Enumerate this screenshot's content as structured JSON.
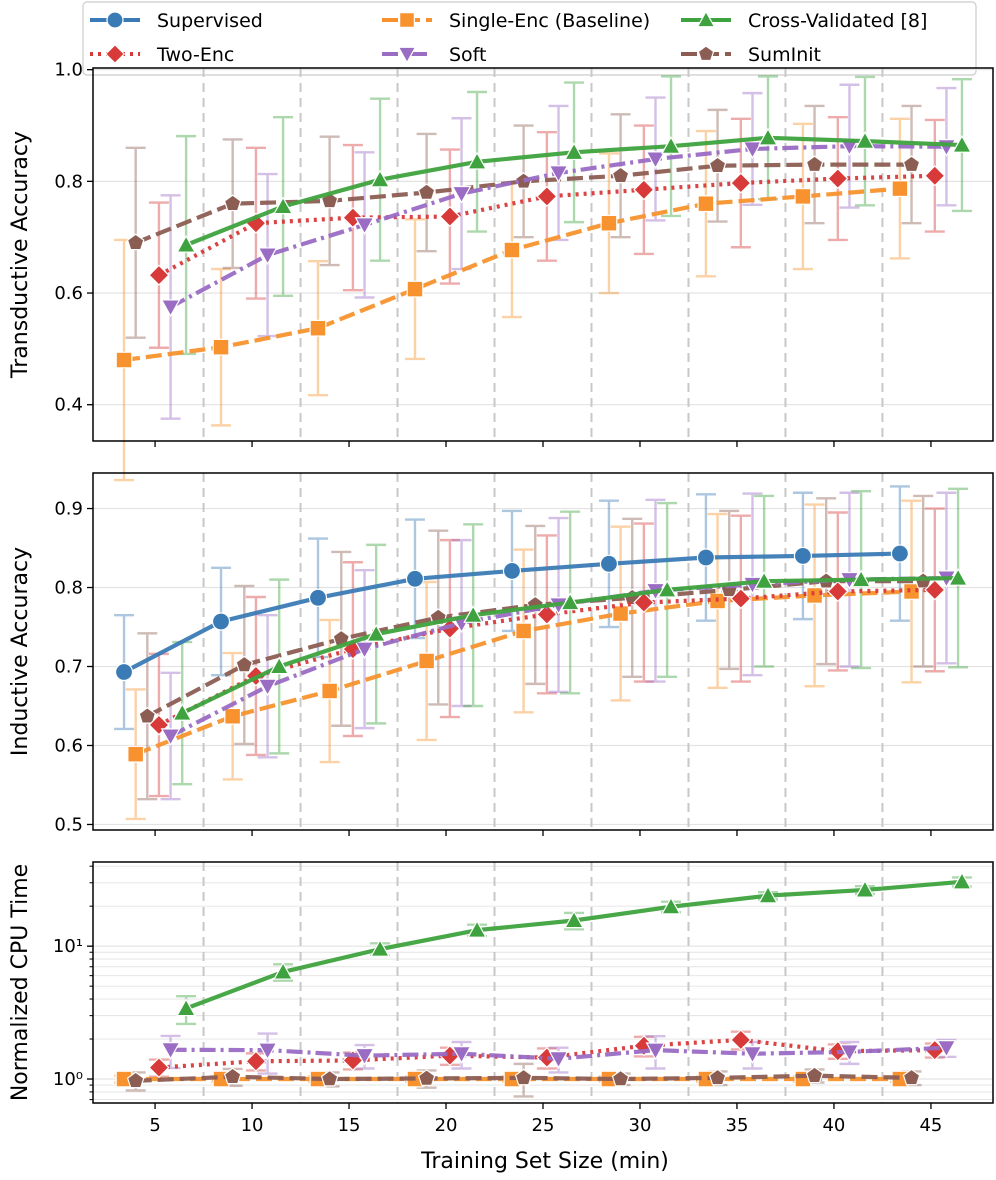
{
  "chart_data": {
    "type": "line",
    "xlabel": "Training Set Size (min)",
    "xticks": [
      5,
      10,
      15,
      20,
      25,
      30,
      35,
      40,
      45
    ],
    "xlim": [
      1.8,
      48.2
    ],
    "vlines": [
      7.5,
      12.5,
      17.5,
      22.5,
      27.5,
      32.5,
      37.5,
      42.5
    ],
    "legend": {
      "placement": "top",
      "entries": [
        {
          "key": "supervised",
          "label": "Supervised"
        },
        {
          "key": "single",
          "label": "Single-Enc (Baseline)"
        },
        {
          "key": "cv",
          "label": "Cross-Validated [8]"
        },
        {
          "key": "twoenc",
          "label": "Two-Enc"
        },
        {
          "key": "soft",
          "label": "Soft"
        },
        {
          "key": "suminit",
          "label": "SumInit"
        }
      ]
    },
    "series_styles": {
      "supervised": {
        "color": "#3b7bb5",
        "marker": "circle",
        "dash": ""
      },
      "single": {
        "color": "#f7922e",
        "marker": "square",
        "dash": "16,6"
      },
      "cv": {
        "color": "#3ea33e",
        "marker": "triangle-up",
        "dash": ""
      },
      "twoenc": {
        "color": "#d83a3a",
        "marker": "diamond",
        "dash": "3,5"
      },
      "soft": {
        "color": "#9a6cc4",
        "marker": "triangle-down",
        "dash": "16,5,3,5"
      },
      "suminit": {
        "color": "#8c5e53",
        "marker": "pentagon",
        "dash": "16,6"
      }
    },
    "panels": [
      {
        "key": "transductive",
        "ylabel": "Transductive Accuracy",
        "yscale": "linear",
        "ylim": [
          0.335,
          1.003
        ],
        "yticks": [
          0.4,
          0.6,
          0.8,
          1.0
        ],
        "ytick_labels": [
          "0.4",
          "0.6",
          "0.8",
          "1.0"
        ],
        "series": [
          {
            "key": "single",
            "x": [
              3.4,
              8.4,
              13.4,
              18.4,
              23.4,
              28.4,
              33.4,
              38.4,
              43.4
            ],
            "y": [
              0.48,
              0.503,
              0.537,
              0.607,
              0.677,
              0.725,
              0.76,
              0.773,
              0.787
            ],
            "err": [
              0.215,
              0.14,
              0.12,
              0.125,
              0.12,
              0.125,
              0.13,
              0.13,
              0.125
            ]
          },
          {
            "key": "twoenc",
            "x": [
              5.2,
              10.2,
              15.2,
              20.2,
              25.2,
              30.2,
              35.2,
              40.2,
              45.2
            ],
            "y": [
              0.632,
              0.725,
              0.735,
              0.737,
              0.773,
              0.785,
              0.797,
              0.805,
              0.81
            ],
            "err": [
              0.13,
              0.135,
              0.13,
              0.12,
              0.115,
              0.115,
              0.115,
              0.11,
              0.1
            ]
          },
          {
            "key": "suminit",
            "x": [
              4.0,
              9.0,
              14.0,
              19.0,
              24.0,
              29.0,
              34.0,
              39.0,
              44.0
            ],
            "y": [
              0.69,
              0.76,
              0.765,
              0.78,
              0.8,
              0.81,
              0.828,
              0.83,
              0.83
            ],
            "err": [
              0.17,
              0.115,
              0.115,
              0.105,
              0.1,
              0.11,
              0.1,
              0.105,
              0.105
            ]
          },
          {
            "key": "soft",
            "x": [
              5.8,
              10.8,
              15.8,
              20.8,
              25.8,
              30.8,
              35.8,
              40.8,
              45.8
            ],
            "y": [
              0.575,
              0.668,
              0.722,
              0.778,
              0.815,
              0.84,
              0.858,
              0.863,
              0.862
            ],
            "err": [
              0.2,
              0.145,
              0.13,
              0.135,
              0.12,
              0.11,
              0.1,
              0.11,
              0.105
            ]
          },
          {
            "key": "cv",
            "x": [
              6.6,
              11.6,
              16.6,
              21.6,
              26.6,
              31.6,
              36.6,
              41.6,
              46.6
            ],
            "y": [
              0.686,
              0.755,
              0.803,
              0.835,
              0.852,
              0.863,
              0.878,
              0.872,
              0.865
            ],
            "err": [
              0.195,
              0.16,
              0.145,
              0.125,
              0.125,
              0.125,
              0.11,
              0.115,
              0.118
            ]
          }
        ]
      },
      {
        "key": "inductive",
        "ylabel": "Inductive Accuracy",
        "yscale": "linear",
        "ylim": [
          0.493,
          0.945
        ],
        "yticks": [
          0.5,
          0.6,
          0.7,
          0.8,
          0.9
        ],
        "ytick_labels": [
          "0.5",
          "0.6",
          "0.7",
          "0.8",
          "0.9"
        ],
        "series": [
          {
            "key": "supervised",
            "x": [
              3.4,
              8.4,
              13.4,
              18.4,
              23.4,
              28.4,
              33.4,
              38.4,
              43.4
            ],
            "y": [
              0.693,
              0.757,
              0.787,
              0.811,
              0.821,
              0.83,
              0.838,
              0.84,
              0.843
            ],
            "err": [
              0.072,
              0.068,
              0.075,
              0.075,
              0.076,
              0.08,
              0.08,
              0.08,
              0.085
            ]
          },
          {
            "key": "single",
            "x": [
              4.0,
              9.0,
              14.0,
              19.0,
              24.0,
              29.0,
              34.0,
              39.0,
              44.0
            ],
            "y": [
              0.589,
              0.637,
              0.669,
              0.707,
              0.745,
              0.767,
              0.783,
              0.79,
              0.795
            ],
            "err": [
              0.082,
              0.08,
              0.09,
              0.1,
              0.103,
              0.11,
              0.11,
              0.115,
              0.115
            ]
          },
          {
            "key": "suminit",
            "x": [
              4.6,
              9.6,
              14.6,
              19.6,
              24.6,
              29.6,
              34.6,
              39.6,
              44.6
            ],
            "y": [
              0.637,
              0.702,
              0.735,
              0.762,
              0.778,
              0.787,
              0.797,
              0.808,
              0.808
            ],
            "err": [
              0.105,
              0.1,
              0.11,
              0.11,
              0.1,
              0.1,
              0.1,
              0.105,
              0.108
            ]
          },
          {
            "key": "twoenc",
            "x": [
              5.2,
              10.2,
              15.2,
              20.2,
              25.2,
              30.2,
              35.2,
              40.2,
              45.2
            ],
            "y": [
              0.626,
              0.688,
              0.722,
              0.748,
              0.766,
              0.781,
              0.786,
              0.795,
              0.797
            ],
            "err": [
              0.09,
              0.1,
              0.11,
              0.112,
              0.1,
              0.1,
              0.105,
              0.1,
              0.103
            ]
          },
          {
            "key": "soft",
            "x": [
              5.8,
              10.8,
              15.8,
              20.8,
              25.8,
              30.8,
              35.8,
              40.8,
              45.8
            ],
            "y": [
              0.612,
              0.675,
              0.722,
              0.755,
              0.778,
              0.796,
              0.804,
              0.81,
              0.812
            ],
            "err": [
              0.08,
              0.09,
              0.1,
              0.105,
              0.11,
              0.115,
              0.115,
              0.11,
              0.108
            ]
          },
          {
            "key": "cv",
            "x": [
              6.4,
              11.4,
              16.4,
              21.4,
              26.4,
              31.4,
              36.4,
              41.4,
              46.4
            ],
            "y": [
              0.641,
              0.7,
              0.741,
              0.765,
              0.781,
              0.797,
              0.808,
              0.81,
              0.812
            ],
            "err": [
              0.09,
              0.11,
              0.113,
              0.115,
              0.115,
              0.11,
              0.108,
              0.112,
              0.113
            ]
          }
        ]
      },
      {
        "key": "cputime",
        "ylabel": "Normalized CPU Time",
        "yscale": "log",
        "ylim": [
          0.66,
          43
        ],
        "yticks": [
          1,
          10
        ],
        "ytick_labels": [
          "10⁰",
          "10¹"
        ],
        "series": [
          {
            "key": "single",
            "x": [
              3.4,
              8.4,
              13.4,
              18.4,
              23.4,
              28.4,
              33.4,
              38.4,
              43.4
            ],
            "y": [
              1.0,
              1.0,
              1.0,
              1.0,
              1.0,
              1.0,
              1.0,
              1.0,
              1.0
            ],
            "err": [
              0.06,
              0.05,
              0.05,
              0.05,
              0.05,
              0.05,
              0.05,
              0.05,
              0.05
            ]
          },
          {
            "key": "suminit",
            "x": [
              4.0,
              9.0,
              14.0,
              19.0,
              24.0,
              29.0,
              34.0,
              39.0,
              44.0
            ],
            "y": [
              0.97,
              1.04,
              1.0,
              1.01,
              1.02,
              1.0,
              1.02,
              1.06,
              1.02
            ],
            "err": [
              0.15,
              0.15,
              0.12,
              0.15,
              0.28,
              0.1,
              0.12,
              0.12,
              0.12
            ]
          },
          {
            "key": "twoenc",
            "x": [
              5.2,
              10.2,
              15.2,
              20.2,
              25.2,
              30.2,
              35.2,
              40.2,
              45.2
            ],
            "y": [
              1.22,
              1.36,
              1.38,
              1.5,
              1.45,
              1.78,
              1.97,
              1.62,
              1.65
            ],
            "err": [
              0.18,
              0.2,
              0.2,
              0.22,
              0.25,
              0.3,
              0.3,
              0.2,
              0.2
            ]
          },
          {
            "key": "soft",
            "x": [
              5.8,
              10.8,
              15.8,
              20.8,
              25.8,
              30.8,
              35.8,
              40.8,
              45.8
            ],
            "y": [
              1.66,
              1.65,
              1.5,
              1.55,
              1.42,
              1.65,
              1.55,
              1.6,
              1.72
            ],
            "err": [
              0.45,
              0.55,
              0.3,
              0.35,
              0.3,
              0.45,
              0.35,
              0.3,
              0.25
            ]
          },
          {
            "key": "cv",
            "x": [
              6.6,
              11.6,
              16.6,
              21.6,
              26.6,
              31.6,
              36.6,
              41.6,
              46.6
            ],
            "y": [
              3.4,
              6.4,
              9.5,
              13.2,
              15.6,
              19.8,
              24.0,
              26.5,
              30.5
            ],
            "err": [
              0.8,
              0.9,
              1.0,
              1.3,
              2.2,
              1.8,
              1.5,
              1.8,
              2.4
            ]
          }
        ]
      }
    ]
  }
}
